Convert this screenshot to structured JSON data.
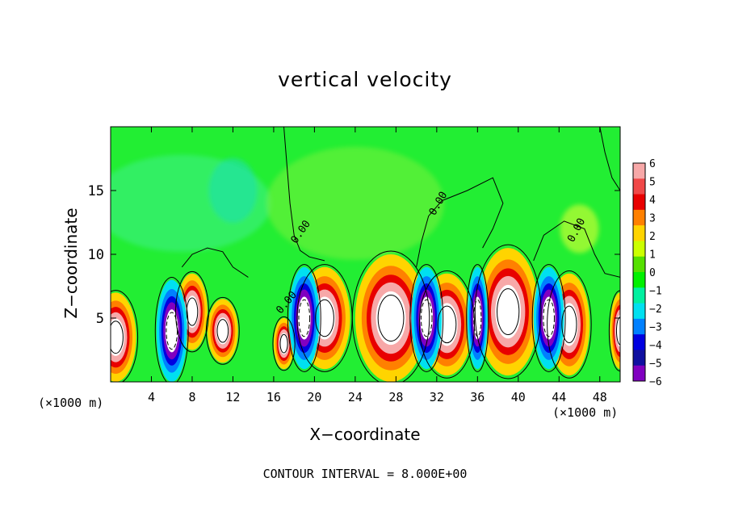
{
  "chart_data": {
    "type": "heatmap",
    "title": "vertical velocity",
    "xlabel": "X−coordinate",
    "ylabel": "Z−coordinate",
    "x_unit_left": "(×1000 m)",
    "x_unit_right": "(×1000 m)",
    "footnote": "CONTOUR INTERVAL = 8.000E+00",
    "xlim": [
      0,
      50
    ],
    "ylim": [
      0,
      20
    ],
    "x_ticks": [
      4,
      8,
      12,
      16,
      20,
      24,
      28,
      32,
      36,
      40,
      44,
      48
    ],
    "y_ticks": [
      5,
      10,
      15
    ],
    "contour_label": "0.00",
    "colorbar": {
      "levels": [
        6,
        5,
        4,
        3,
        2,
        1,
        0,
        -1,
        -2,
        -3,
        -4,
        -5,
        -6
      ],
      "colors": [
        "#f7a8a8",
        "#f04848",
        "#e80000",
        "#ff8000",
        "#ffd400",
        "#ccff00",
        "#55e000",
        "#00f000",
        "#00f0a0",
        "#00e0f0",
        "#0080ff",
        "#0000e0",
        "#1010a0",
        "#8000c0"
      ]
    },
    "background_color": "#22ee33",
    "features": [
      {
        "kind": "updraft",
        "x": 0.5,
        "z": 3.5,
        "width": 4,
        "height": 7
      },
      {
        "kind": "updraft",
        "x": 8,
        "z": 5.5,
        "width": 3,
        "height": 6
      },
      {
        "kind": "updraft",
        "x": 11,
        "z": 4,
        "width": 3,
        "height": 5
      },
      {
        "kind": "updraft",
        "x": 17,
        "z": 3,
        "width": 2,
        "height": 4
      },
      {
        "kind": "updraft",
        "x": 21,
        "z": 5,
        "width": 5,
        "height": 8
      },
      {
        "kind": "updraft",
        "x": 27.5,
        "z": 5,
        "width": 7,
        "height": 10
      },
      {
        "kind": "updraft",
        "x": 33,
        "z": 4.5,
        "width": 5,
        "height": 8
      },
      {
        "kind": "updraft",
        "x": 39,
        "z": 5.5,
        "width": 6,
        "height": 10
      },
      {
        "kind": "updraft",
        "x": 45,
        "z": 4.5,
        "width": 4,
        "height": 8
      },
      {
        "kind": "updraft",
        "x": 50,
        "z": 4,
        "width": 2,
        "height": 6
      },
      {
        "kind": "downdraft",
        "x": 6,
        "z": 4,
        "width": 3,
        "height": 8
      },
      {
        "kind": "downdraft",
        "x": 19,
        "z": 5,
        "width": 3,
        "height": 8
      },
      {
        "kind": "downdraft",
        "x": 31,
        "z": 5,
        "width": 3,
        "height": 8
      },
      {
        "kind": "downdraft",
        "x": 36,
        "z": 5,
        "width": 2,
        "height": 8
      },
      {
        "kind": "downdraft",
        "x": 43,
        "z": 5,
        "width": 3,
        "height": 8
      }
    ]
  }
}
